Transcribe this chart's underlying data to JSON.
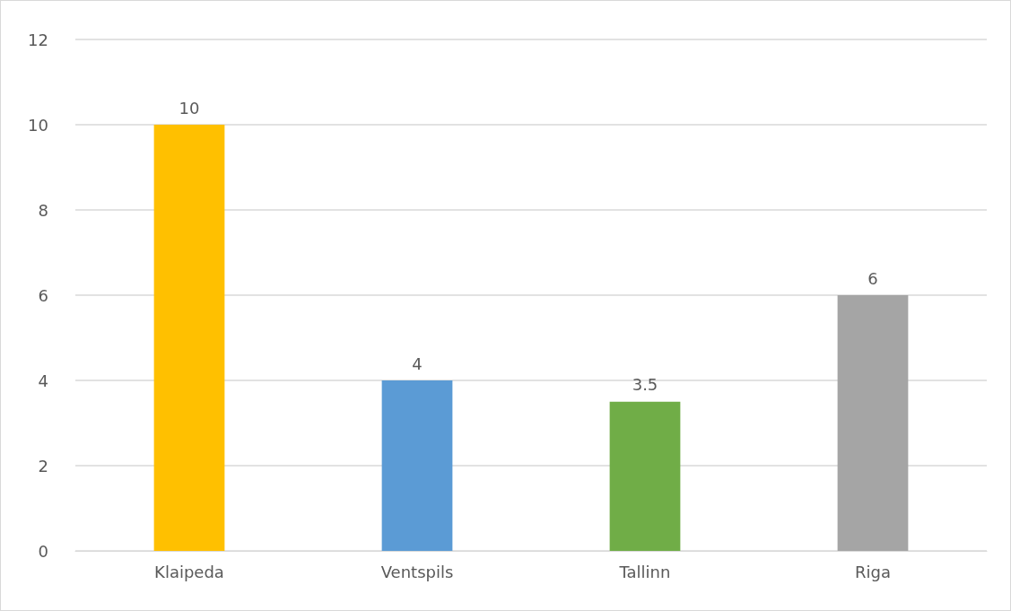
{
  "chart_data": {
    "type": "bar",
    "categories": [
      "Klaipeda",
      "Ventspils",
      "Tallinn",
      "Riga"
    ],
    "values": [
      10,
      4,
      3.5,
      6
    ],
    "colors": [
      "#ffc000",
      "#5b9bd5",
      "#70ad47",
      "#a5a5a5"
    ],
    "ylim": [
      0,
      12
    ],
    "yticks": [
      0,
      2,
      4,
      6,
      8,
      10,
      12
    ],
    "grid": "y",
    "data_labels": true
  }
}
